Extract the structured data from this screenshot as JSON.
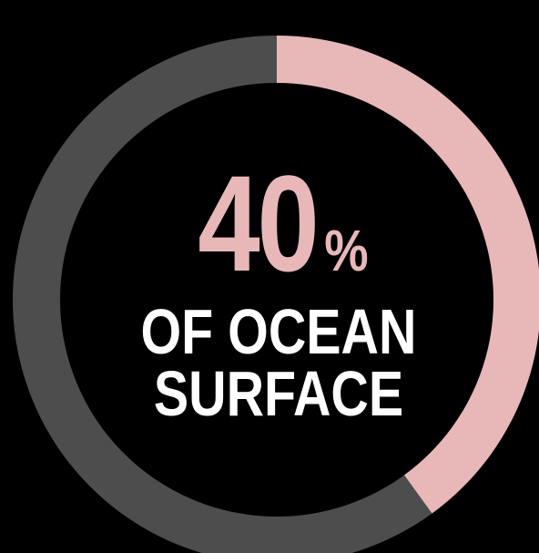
{
  "colors": {
    "background": "#000000",
    "highlight": "#e8b8b8",
    "remainder": "#4d4d4d",
    "label_text": "#ffffff"
  },
  "chart_data": {
    "type": "pie",
    "style": "donut",
    "title": "",
    "slices": [
      {
        "label": "",
        "value": 40
      },
      {
        "label": "",
        "value": 60
      }
    ],
    "center_value": "40",
    "center_unit": "%",
    "center_label_lines": [
      "OF OCEAN",
      "SURFACE"
    ]
  }
}
